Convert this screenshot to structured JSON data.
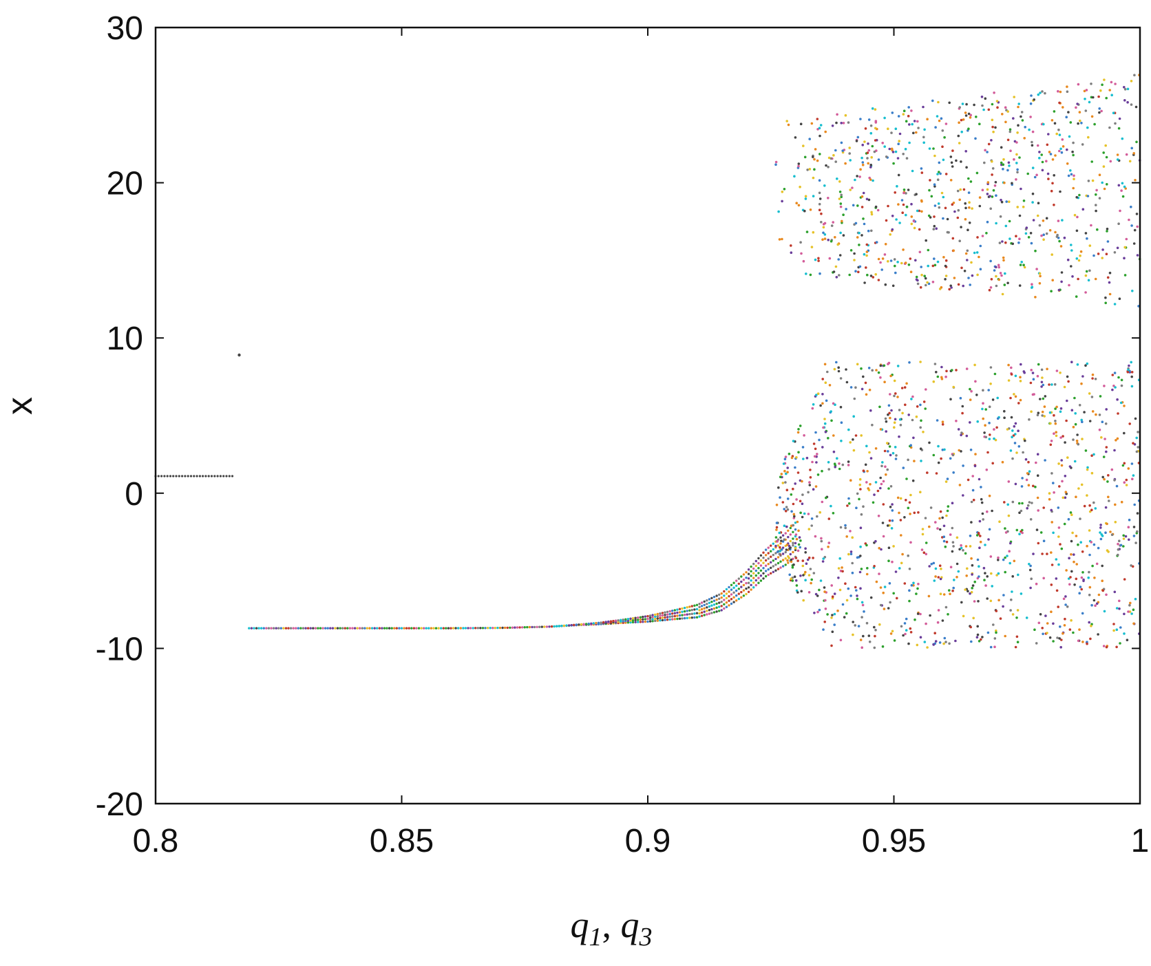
{
  "chart_data": {
    "type": "scatter",
    "title": "",
    "xlabel": {
      "main1": "q",
      "sub1": "1",
      "sep": ", ",
      "main2": "q",
      "sub2": "3"
    },
    "ylabel": "x",
    "xlim": [
      0.8,
      1.0
    ],
    "ylim": [
      -20,
      30
    ],
    "xticks": [
      0.8,
      0.85,
      0.9,
      0.95,
      1.0
    ],
    "xtick_labels": [
      "0.8",
      "0.85",
      "0.9",
      "0.95",
      "1"
    ],
    "yticks": [
      -20,
      -10,
      0,
      10,
      20,
      30
    ],
    "ytick_labels": [
      "-20",
      "-10",
      "0",
      "10",
      "20",
      "30"
    ],
    "grid": false,
    "legend": "none",
    "point_colors": [
      "#e8891f",
      "#3a7ec9",
      "#c0392b",
      "#6a3d9a",
      "#2ca02c",
      "#e6c229",
      "#17becf",
      "#7f7f7f",
      "#d35d9a",
      "#444444"
    ],
    "regions": {
      "fixed_left": {
        "x": [
          0.8,
          0.816
        ],
        "y": 1.1,
        "note_point": [
          0.817,
          8.9
        ]
      },
      "stable_branch": [
        [
          0.819,
          -8.7
        ],
        [
          0.84,
          -8.7
        ],
        [
          0.86,
          -8.7
        ],
        [
          0.87,
          -8.68
        ],
        [
          0.88,
          -8.6
        ],
        [
          0.89,
          -8.4
        ],
        [
          0.9,
          -8.1
        ],
        [
          0.91,
          -7.6
        ],
        [
          0.915,
          -7.0
        ],
        [
          0.92,
          -5.8
        ],
        [
          0.924,
          -4.5
        ],
        [
          0.928,
          -3.6
        ],
        [
          0.932,
          -2.4
        ]
      ],
      "chaotic": {
        "x_start": 0.926,
        "x_end": 1.0,
        "upper_band": [
          12,
          27
        ],
        "lower_band": [
          -10,
          8.5
        ]
      }
    }
  }
}
